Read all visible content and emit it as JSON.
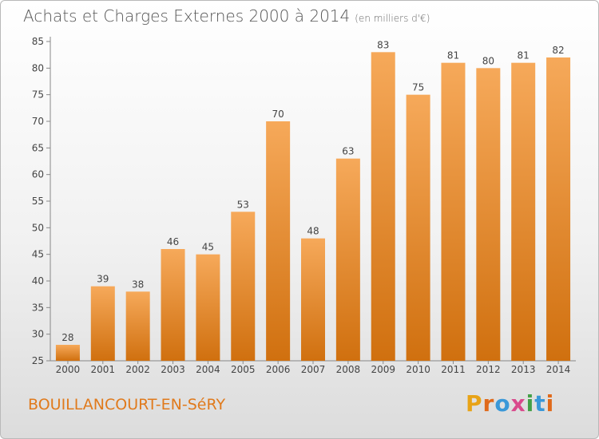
{
  "header": {
    "title": "Achats et Charges Externes 2000 à 2014",
    "subtitle": "(en milliers d'€)"
  },
  "footer": {
    "place": "BOUILLANCOURT-EN-SéRY",
    "brand_letters": [
      "P",
      "r",
      "o",
      "x",
      "i",
      "t",
      "i"
    ],
    "brand_colors": [
      "#e8a317",
      "#e06a1b",
      "#3a98d8",
      "#d94a8c",
      "#43a047",
      "#3a98d8",
      "#e06a1b"
    ]
  },
  "chart_data": {
    "type": "bar",
    "categories": [
      "2000",
      "2001",
      "2002",
      "2003",
      "2004",
      "2005",
      "2006",
      "2007",
      "2008",
      "2009",
      "2010",
      "2011",
      "2012",
      "2013",
      "2014"
    ],
    "values": [
      28,
      39,
      38,
      46,
      45,
      53,
      70,
      48,
      63,
      83,
      75,
      81,
      80,
      81,
      82
    ],
    "ylim": [
      25,
      85
    ],
    "yticks": [
      25,
      30,
      35,
      40,
      45,
      50,
      55,
      60,
      65,
      70,
      75,
      80,
      85
    ],
    "grid": false,
    "colors": {
      "bar_top": "#f6a95a",
      "bar_bottom": "#d0700f",
      "axis": "#888888"
    }
  }
}
